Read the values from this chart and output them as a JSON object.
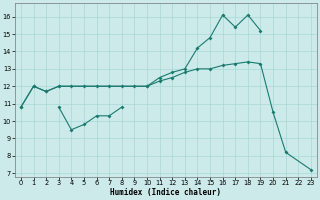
{
  "xlabel": "Humidex (Indice chaleur)",
  "background_color": "#cceaea",
  "line_color": "#1a7a6e",
  "xlim": [
    -0.5,
    23.5
  ],
  "ylim": [
    6.8,
    16.8
  ],
  "xticks": [
    0,
    1,
    2,
    3,
    4,
    5,
    6,
    7,
    8,
    9,
    10,
    11,
    12,
    13,
    14,
    15,
    16,
    17,
    18,
    19,
    20,
    21,
    22,
    23
  ],
  "yticks": [
    7,
    8,
    9,
    10,
    11,
    12,
    13,
    14,
    15,
    16
  ],
  "line1_x": [
    0,
    1,
    2,
    3,
    10,
    11,
    12,
    13,
    14,
    15,
    16,
    17,
    18,
    19
  ],
  "line1_y": [
    10.8,
    12.0,
    11.7,
    12.0,
    12.0,
    12.5,
    12.8,
    13.0,
    14.2,
    14.8,
    16.1,
    15.4,
    16.1,
    15.2
  ],
  "line2_x": [
    0,
    1,
    2,
    3,
    4,
    5,
    6,
    7,
    8,
    9,
    10,
    11,
    12,
    13,
    14,
    15,
    16,
    17,
    18,
    19,
    20,
    21,
    23
  ],
  "line2_y": [
    10.8,
    12.0,
    11.7,
    12.0,
    12.0,
    12.0,
    12.0,
    12.0,
    12.0,
    12.0,
    12.0,
    12.3,
    12.5,
    12.8,
    13.0,
    13.0,
    13.2,
    13.3,
    13.4,
    13.3,
    10.5,
    8.2,
    7.2
  ],
  "line3_x": [
    3,
    4,
    5,
    6,
    7,
    8
  ],
  "line3_y": [
    10.8,
    9.5,
    9.8,
    10.3,
    10.3,
    10.8
  ]
}
